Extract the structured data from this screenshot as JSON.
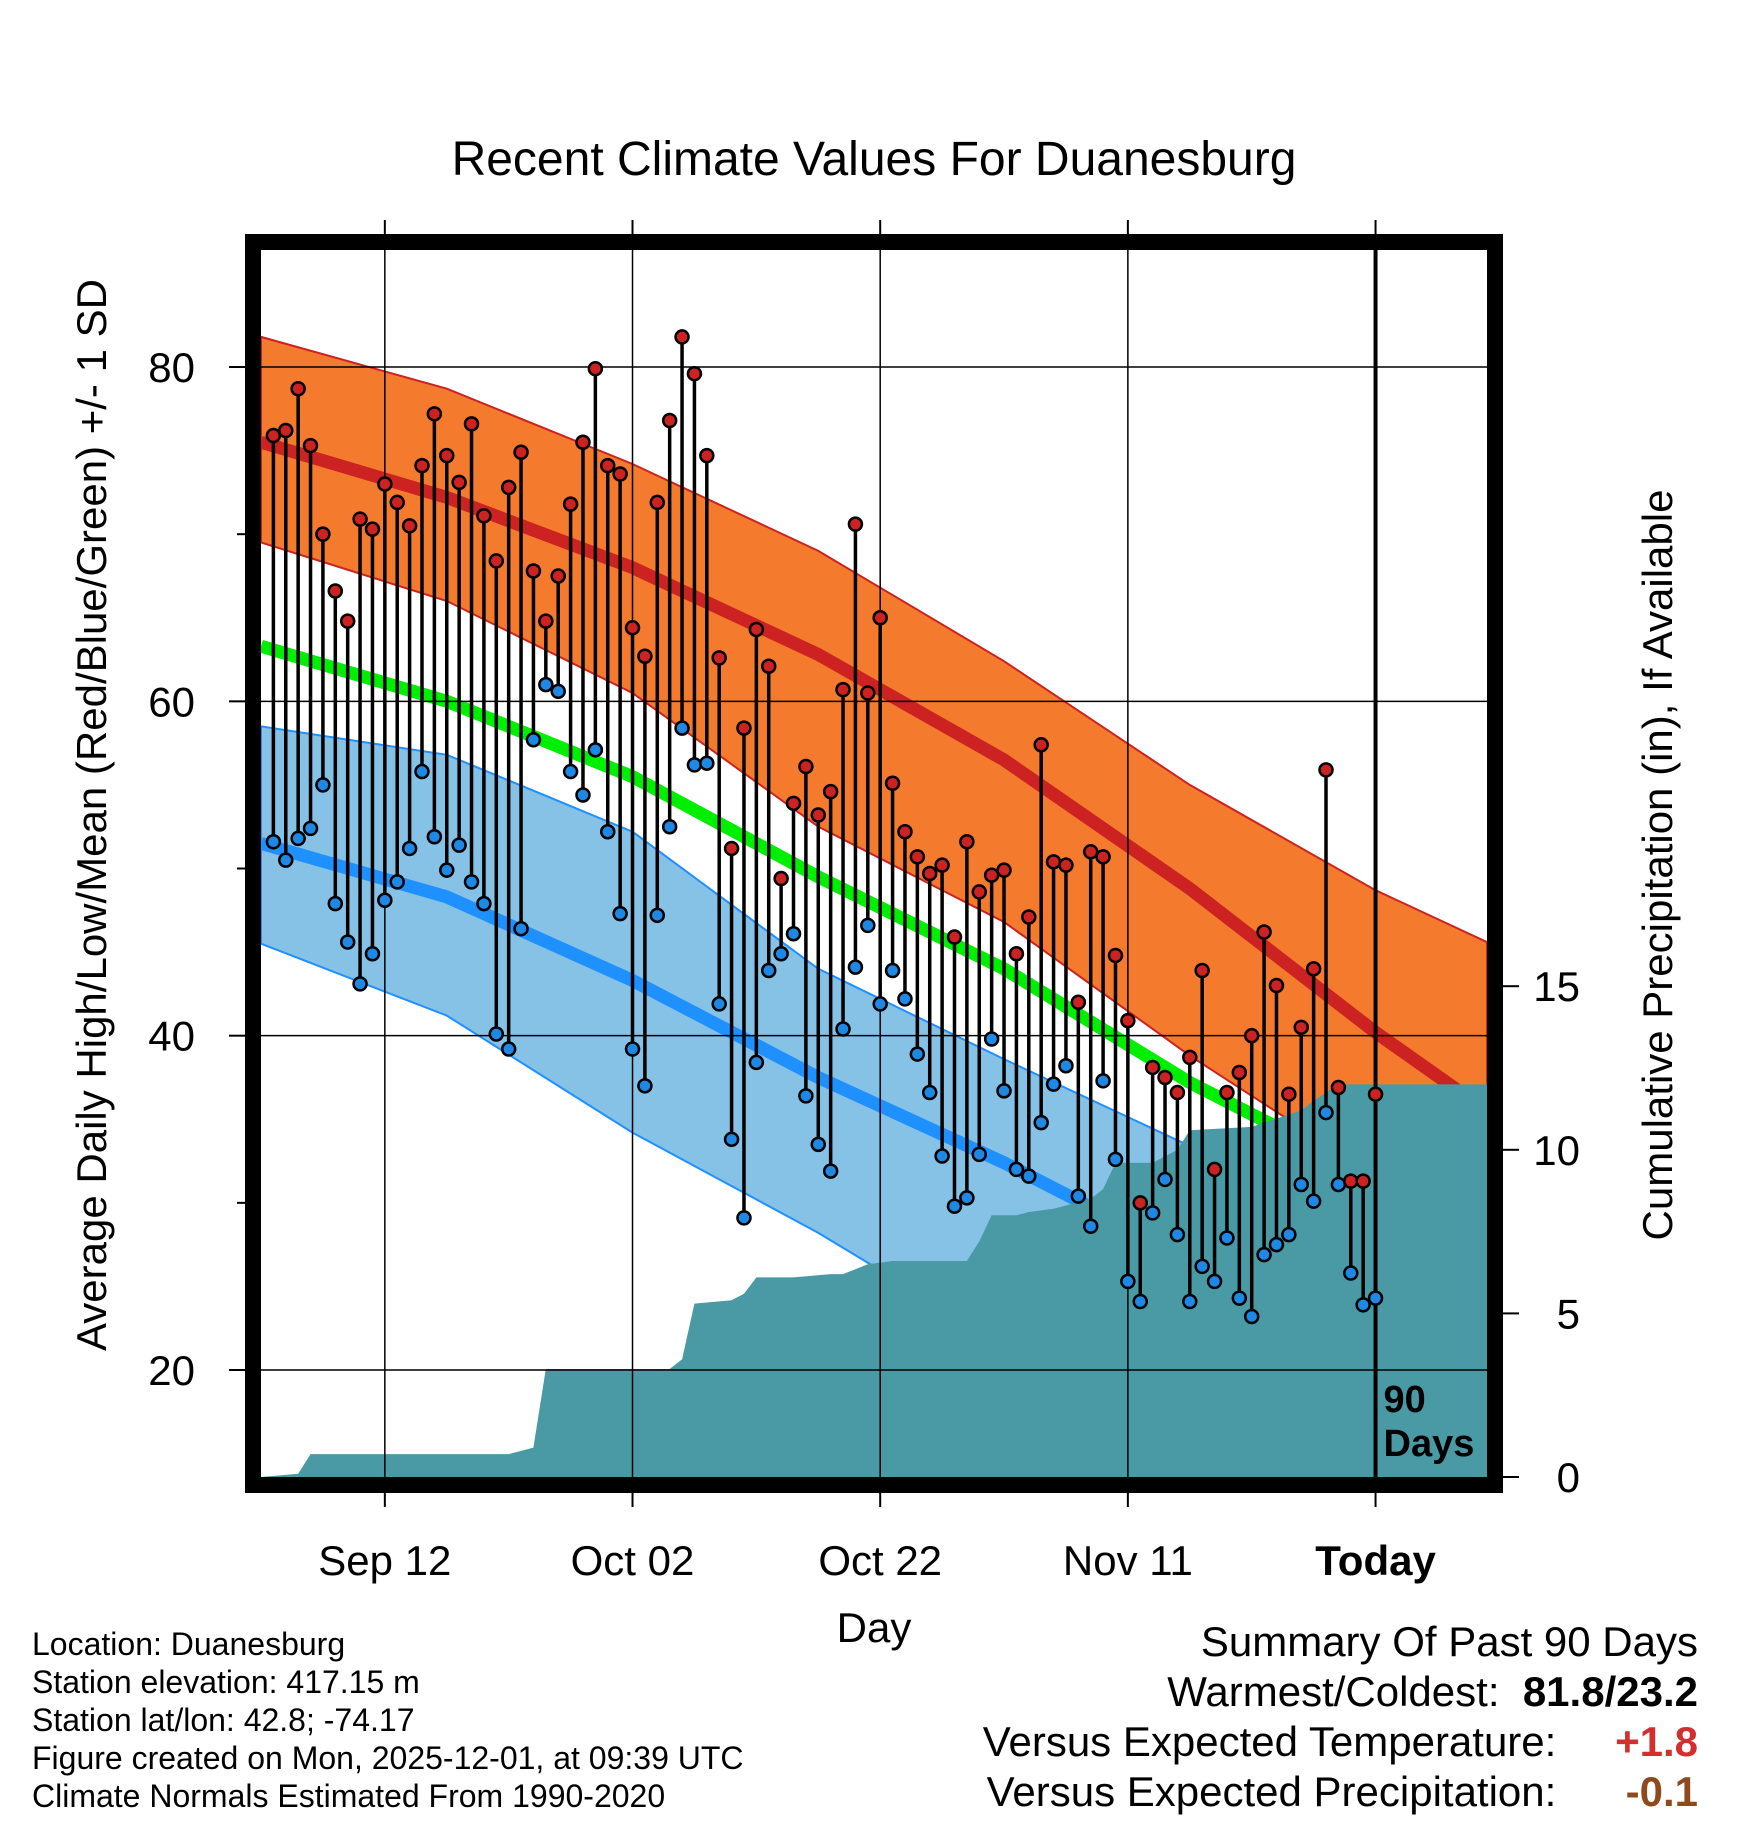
{
  "title": "Recent Climate Values For Duanesburg",
  "chart_data": {
    "type": "line",
    "title": "Recent Climate Values For Duanesburg",
    "xlabel": "Day",
    "ylabel": "Average Daily High/Low/Mean (Red/Blue/Green) +/- 1 SD",
    "y2label": "Cumulative Precipitation (in), If Available",
    "ylim": [
      13.6,
      87
    ],
    "y2lim": [
      0,
      37.5
    ],
    "x_range_days": [
      -90,
      9
    ],
    "yticks": [
      20,
      40,
      60,
      80
    ],
    "y2ticks": [
      0,
      5,
      10,
      15
    ],
    "xticks": [
      {
        "day": -80,
        "label": "Sep 12"
      },
      {
        "day": -60,
        "label": "Oct 02"
      },
      {
        "day": -40,
        "label": "Oct 22"
      },
      {
        "day": -20,
        "label": "Nov 11"
      },
      {
        "day": 0,
        "label": "Today"
      }
    ],
    "marker_label": [
      "90",
      "Days"
    ],
    "normals": {
      "high_mean": [
        [
          -90,
          75.5
        ],
        [
          -75,
          72.2
        ],
        [
          -60,
          68.0
        ],
        [
          -45,
          62.8
        ],
        [
          -30,
          56.5
        ],
        [
          -15,
          48.8
        ],
        [
          0,
          40.2
        ],
        [
          9,
          35.5
        ]
      ],
      "high_upper": [
        [
          -90,
          81.8
        ],
        [
          -75,
          78.7
        ],
        [
          -60,
          74.2
        ],
        [
          -45,
          69.0
        ],
        [
          -30,
          62.4
        ],
        [
          -15,
          55.0
        ],
        [
          0,
          48.7
        ],
        [
          9,
          45.6
        ]
      ],
      "high_lower": [
        [
          -90,
          69.5
        ],
        [
          -75,
          66.0
        ],
        [
          -60,
          60.5
        ],
        [
          -45,
          52.5
        ],
        [
          -30,
          46.8
        ],
        [
          -15,
          38.8
        ],
        [
          0,
          31.6
        ],
        [
          9,
          28.5
        ]
      ],
      "mean": [
        [
          -90,
          63.3
        ],
        [
          -75,
          60.0
        ],
        [
          -60,
          55.5
        ],
        [
          -45,
          49.5
        ],
        [
          -30,
          44.0
        ],
        [
          -15,
          37.2
        ],
        [
          0,
          31.5
        ],
        [
          9,
          28.5
        ]
      ],
      "low_mean": [
        [
          -90,
          51.5
        ],
        [
          -75,
          48.3
        ],
        [
          -60,
          43.3
        ],
        [
          -45,
          37.5
        ],
        [
          -30,
          32.4
        ],
        [
          -15,
          26.7
        ],
        [
          0,
          20.5
        ],
        [
          9,
          16.5
        ]
      ],
      "low_upper": [
        [
          -90,
          58.5
        ],
        [
          -75,
          56.8
        ],
        [
          -60,
          52.2
        ],
        [
          -45,
          44.0
        ],
        [
          -30,
          38.6
        ],
        [
          -15,
          33.4
        ],
        [
          0,
          31.8
        ],
        [
          9,
          30.5
        ]
      ],
      "low_lower": [
        [
          -90,
          45.5
        ],
        [
          -75,
          41.2
        ],
        [
          -60,
          34.2
        ],
        [
          -45,
          28.2
        ],
        [
          -30,
          21.5
        ],
        [
          -15,
          13.6
        ],
        [
          0,
          13.6
        ],
        [
          9,
          13.6
        ]
      ]
    },
    "highs": [
      75.9,
      76.2,
      78.7,
      75.3,
      70.0,
      66.6,
      64.8,
      70.9,
      70.3,
      73.0,
      71.9,
      70.5,
      74.1,
      77.2,
      74.7,
      73.1,
      76.6,
      71.1,
      68.4,
      72.8,
      74.9,
      67.8,
      64.8,
      67.5,
      71.8,
      75.5,
      79.9,
      74.1,
      73.6,
      64.4,
      62.7,
      71.9,
      76.8,
      81.8,
      79.6,
      74.7,
      62.6,
      51.2,
      58.4,
      64.3,
      62.1,
      49.4,
      53.9,
      56.1,
      53.2,
      54.6,
      60.7,
      70.6,
      60.5,
      65.0,
      55.1,
      52.2,
      50.7,
      49.7,
      50.2,
      45.9,
      51.6,
      48.6,
      49.6,
      49.9,
      44.9,
      47.1,
      57.4,
      50.4,
      50.2,
      42.0,
      51.0,
      50.7,
      44.8,
      40.9,
      30.0,
      38.1,
      37.5,
      36.6,
      38.7,
      43.9,
      32.0,
      36.6,
      37.8,
      40.0,
      46.2,
      43.0,
      36.5,
      40.5,
      44.0,
      55.9,
      36.9,
      31.3,
      31.3,
      36.5
    ],
    "lows": [
      51.6,
      50.5,
      51.8,
      52.4,
      55.0,
      47.9,
      45.6,
      43.1,
      44.9,
      48.1,
      49.2,
      51.2,
      55.8,
      51.9,
      49.9,
      51.4,
      49.2,
      47.9,
      40.1,
      39.2,
      46.4,
      57.7,
      61.0,
      60.6,
      55.8,
      54.4,
      57.1,
      52.2,
      47.3,
      39.2,
      37.0,
      47.2,
      52.5,
      58.4,
      56.2,
      56.3,
      41.9,
      33.8,
      29.1,
      38.4,
      43.9,
      44.9,
      46.1,
      36.4,
      33.5,
      31.9,
      40.4,
      44.1,
      46.6,
      41.9,
      43.9,
      42.2,
      38.9,
      36.6,
      32.8,
      29.8,
      30.3,
      32.9,
      39.8,
      36.7,
      32.0,
      31.6,
      34.8,
      37.1,
      38.2,
      30.4,
      28.6,
      37.3,
      32.6,
      25.3,
      24.1,
      29.4,
      31.4,
      28.1,
      24.1,
      26.2,
      25.3,
      27.9,
      24.3,
      23.2,
      26.9,
      27.5,
      28.1,
      31.1,
      30.1,
      35.4,
      31.1,
      25.8,
      23.9,
      24.3
    ],
    "cumulative_precip": [
      [
        -90,
        0
      ],
      [
        -87,
        0.1
      ],
      [
        -86,
        0.7
      ],
      [
        -76,
        0.7
      ],
      [
        -74,
        0.7
      ],
      [
        -70,
        0.7
      ],
      [
        -68,
        0.9
      ],
      [
        -67,
        3.3
      ],
      [
        -60,
        3.3
      ],
      [
        -57,
        3.3
      ],
      [
        -56,
        3.6
      ],
      [
        -55,
        5.3
      ],
      [
        -52,
        5.4
      ],
      [
        -51,
        5.6
      ],
      [
        -50,
        6.1
      ],
      [
        -47,
        6.1
      ],
      [
        -44,
        6.2
      ],
      [
        -43,
        6.2
      ],
      [
        -41,
        6.5
      ],
      [
        -39,
        6.6
      ],
      [
        -37,
        6.6
      ],
      [
        -33,
        6.6
      ],
      [
        -32,
        7.2
      ],
      [
        -31,
        8.0
      ],
      [
        -29,
        8.0
      ],
      [
        -28,
        8.1
      ],
      [
        -26,
        8.2
      ],
      [
        -24,
        8.4
      ],
      [
        -23,
        8.5
      ],
      [
        -22,
        8.8
      ],
      [
        -21,
        9.6
      ],
      [
        -18,
        9.6
      ],
      [
        -16,
        10.0
      ],
      [
        -15,
        10.6
      ],
      [
        -10,
        10.7
      ],
      [
        -6,
        11.2
      ],
      [
        -5,
        11.5
      ],
      [
        -3,
        12.0
      ],
      [
        -1,
        12.0
      ],
      [
        9,
        12.0
      ]
    ]
  },
  "info": {
    "location": "Location: Duanesburg",
    "elevation": "Station elevation: 417.15 m",
    "latlon": "Station lat/lon: 42.8; -74.17",
    "created": "Figure created on Mon, 2025-12-01, at 09:39 UTC",
    "normals": "Climate Normals Estimated From 1990-2020"
  },
  "summary": {
    "heading": "Summary Of Past 90 Days",
    "warm_label": "Warmest/Coldest:",
    "warm_value": "81.8/23.2",
    "temp_label": "Versus Expected Temperature:",
    "temp_value": "+1.8",
    "precip_label": "Versus Expected Precipitation:",
    "precip_value": "-0.1"
  },
  "colors": {
    "high_band": "#f47a2e",
    "high_line": "#cc2222",
    "mean_line": "#00ee00",
    "low_band": "#86c1e6",
    "low_line": "#1e90ff",
    "precip": "#4a9aa6",
    "high_dot": "#cc2222",
    "low_dot": "#1e88e5",
    "temp_value": "#d32f2f",
    "precip_value": "#8d4a1c"
  }
}
